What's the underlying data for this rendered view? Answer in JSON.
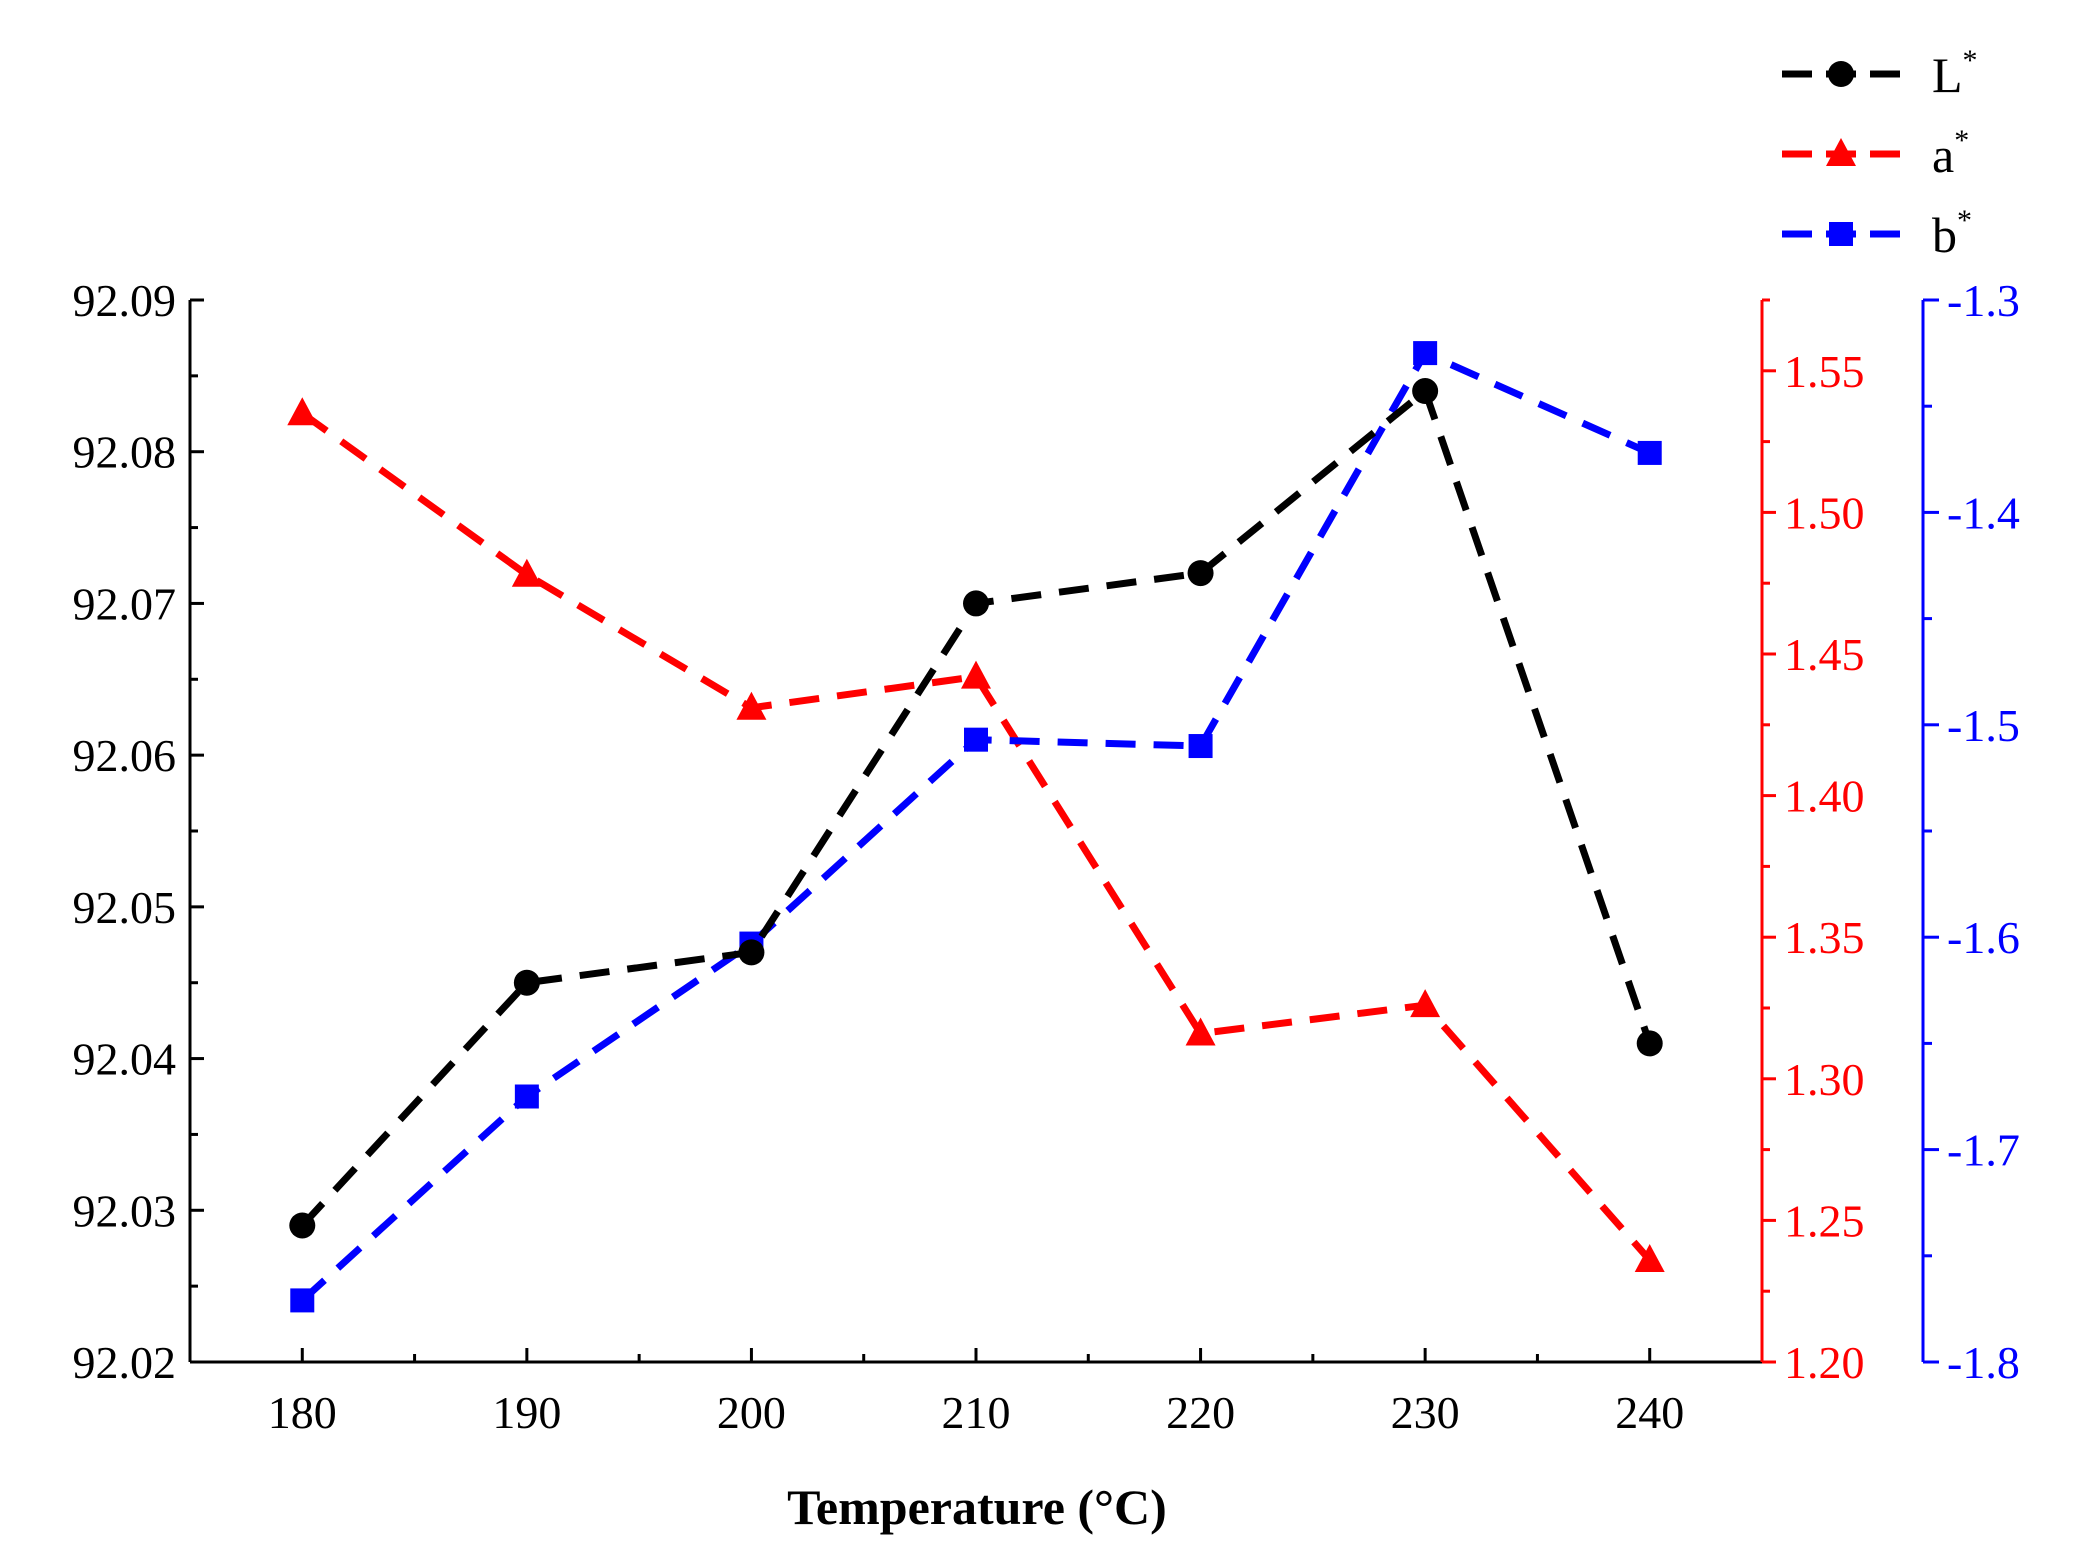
{
  "chart_data": {
    "type": "line",
    "title": "",
    "xlabel": "Temperature (°C)",
    "x": [
      180,
      190,
      200,
      210,
      220,
      230,
      240
    ],
    "xlim": [
      175,
      245
    ],
    "xticks": [
      "180",
      "190",
      "200",
      "210",
      "220",
      "230",
      "240"
    ],
    "axes": {
      "left": {
        "ylim": [
          92.02,
          92.09
        ],
        "color": "#000000",
        "ticks": [
          "92.02",
          "92.03",
          "92.04",
          "92.05",
          "92.06",
          "92.07",
          "92.08",
          "92.09"
        ],
        "tick_values": [
          92.02,
          92.03,
          92.04,
          92.05,
          92.06,
          92.07,
          92.08,
          92.09
        ]
      },
      "right1": {
        "ylim": [
          1.2,
          1.575
        ],
        "color": "#ff0000",
        "ticks": [
          "1.20",
          "1.25",
          "1.30",
          "1.35",
          "1.40",
          "1.45",
          "1.50",
          "1.55"
        ],
        "tick_values": [
          1.2,
          1.25,
          1.3,
          1.35,
          1.4,
          1.45,
          1.5,
          1.55
        ]
      },
      "right2": {
        "ylim": [
          -1.8,
          -1.3
        ],
        "color": "#0000ff",
        "ticks": [
          "-1.8",
          "-1.7",
          "-1.6",
          "-1.5",
          "-1.4",
          "-1.3"
        ],
        "tick_values": [
          -1.8,
          -1.7,
          -1.6,
          -1.5,
          -1.4,
          -1.3
        ]
      }
    },
    "series": [
      {
        "name": "L",
        "sup": "*",
        "axis": "left",
        "color": "#000000",
        "marker": "circle",
        "values": [
          92.029,
          92.045,
          92.047,
          92.07,
          92.072,
          92.084,
          92.041
        ]
      },
      {
        "name": "a",
        "sup": "*",
        "axis": "right1",
        "color": "#ff0000",
        "marker": "triangle",
        "values": [
          1.535,
          1.478,
          1.431,
          1.442,
          1.316,
          1.326,
          1.236
        ]
      },
      {
        "name": "b",
        "sup": "*",
        "axis": "right2",
        "color": "#0000ff",
        "marker": "square",
        "values": [
          -1.771,
          -1.675,
          -1.603,
          -1.507,
          -1.51,
          -1.325,
          -1.372
        ]
      }
    ],
    "legend_position": "top-right"
  }
}
